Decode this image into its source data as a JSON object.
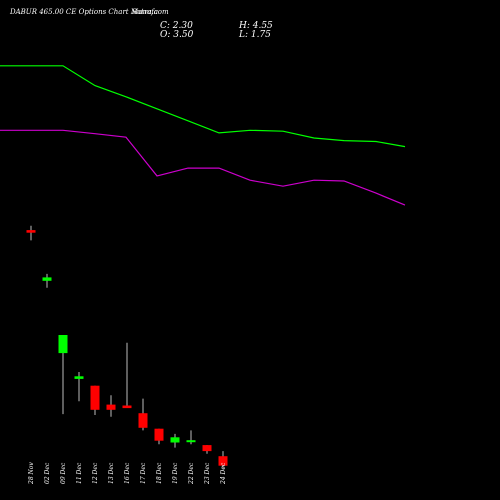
{
  "header": {
    "title": "DABUR 465.00 CE Options Chart Munafa",
    "site": "Sutra.com",
    "close": "C: 2.30",
    "high": "H: 4.55",
    "open": "O: 3.50",
    "low": "L: 1.75"
  },
  "chart_data": {
    "type": "candlestick",
    "categories": [
      "28 Nov",
      "02 Dec",
      "09 Dec",
      "11 Dec",
      "12 Dec",
      "13 Dec",
      "16 Dec",
      "17 Dec",
      "18 Dec",
      "19 Dec",
      "22 Dec",
      "23 Dec",
      "24 Dec"
    ],
    "candles": [
      {
        "open": 17.9,
        "high": 18.4,
        "low": 16.7,
        "close": 17.6
      },
      {
        "open": 12.0,
        "high": 12.8,
        "low": 11.2,
        "close": 12.4
      },
      {
        "open": 3.6,
        "high": 5.7,
        "low": -3.5,
        "close": 5.7
      },
      {
        "open": 0.6,
        "high": 1.4,
        "low": -2.0,
        "close": 0.9
      },
      {
        "open": -0.2,
        "high": -0.2,
        "low": -3.6,
        "close": -3.0
      },
      {
        "open": -2.4,
        "high": -1.3,
        "low": -3.8,
        "close": -3.0
      },
      {
        "open": -2.5,
        "high": 4.8,
        "low": -2.5,
        "close": -2.8
      },
      {
        "open": -3.4,
        "high": -1.7,
        "low": -5.4,
        "close": -5.1
      },
      {
        "open": -5.2,
        "high": -5.2,
        "low": -7.0,
        "close": -6.6
      },
      {
        "open": -6.8,
        "high": -5.8,
        "low": -7.4,
        "close": -6.2
      },
      {
        "open": -6.7,
        "high": -5.4,
        "low": -7.0,
        "close": -6.6
      },
      {
        "open": -7.1,
        "high": -7.1,
        "low": -8.1,
        "close": -7.8
      },
      {
        "open": -8.4,
        "high": -7.8,
        "low": -9.8,
        "close": -9.5
      }
    ],
    "series": [
      {
        "values": [
          37.0,
          37.0,
          34.7,
          33.4,
          32.0,
          30.6,
          29.2,
          29.5,
          29.4,
          28.6,
          28.3,
          28.2,
          27.6
        ]
      },
      {
        "values": [
          29.5,
          29.5,
          29.1,
          28.7,
          24.2,
          25.1,
          25.1,
          23.7,
          23.0,
          23.7,
          23.6,
          22.2,
          20.8
        ]
      }
    ],
    "colors": {
      "up": "#00ff00",
      "down": "#ff0000",
      "line1": "#00ff00",
      "line2": "#cc00cc",
      "background": "#000000",
      "text": "#ffffff"
    },
    "ylim": [
      -10,
      40
    ],
    "grid": false,
    "legend": "none"
  }
}
